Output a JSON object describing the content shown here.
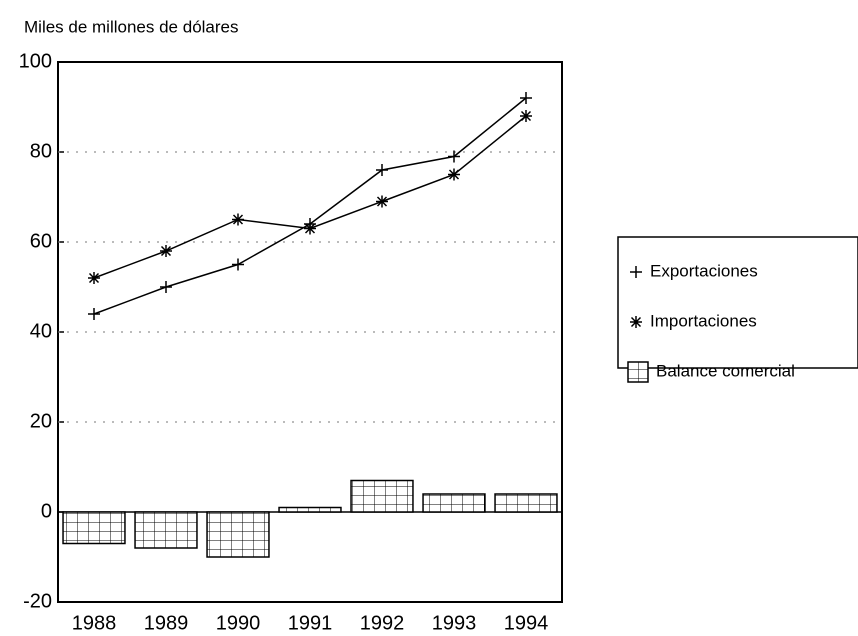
{
  "chart_data": {
    "type": "combo",
    "ylabel": "Miles de millones de dólares",
    "categories": [
      "1988",
      "1989",
      "1990",
      "1991",
      "1992",
      "1993",
      "1994"
    ],
    "series": [
      {
        "name": "Exportaciones",
        "type": "line",
        "marker": "plus",
        "color": "#000000",
        "values": [
          44,
          50,
          55,
          64,
          76,
          79,
          92
        ]
      },
      {
        "name": "Importaciones",
        "type": "line",
        "marker": "asterisk",
        "color": "#000000",
        "values": [
          52,
          58,
          65,
          63,
          69,
          75,
          88
        ]
      },
      {
        "name": "Balance comercial",
        "type": "bar",
        "color": "#000000",
        "values": [
          -7,
          -8,
          -10,
          1,
          7,
          4,
          4
        ]
      }
    ],
    "ylim": [
      -20,
      100
    ],
    "yticks": [
      -20,
      0,
      20,
      40,
      60,
      80,
      100
    ],
    "grid": true
  }
}
